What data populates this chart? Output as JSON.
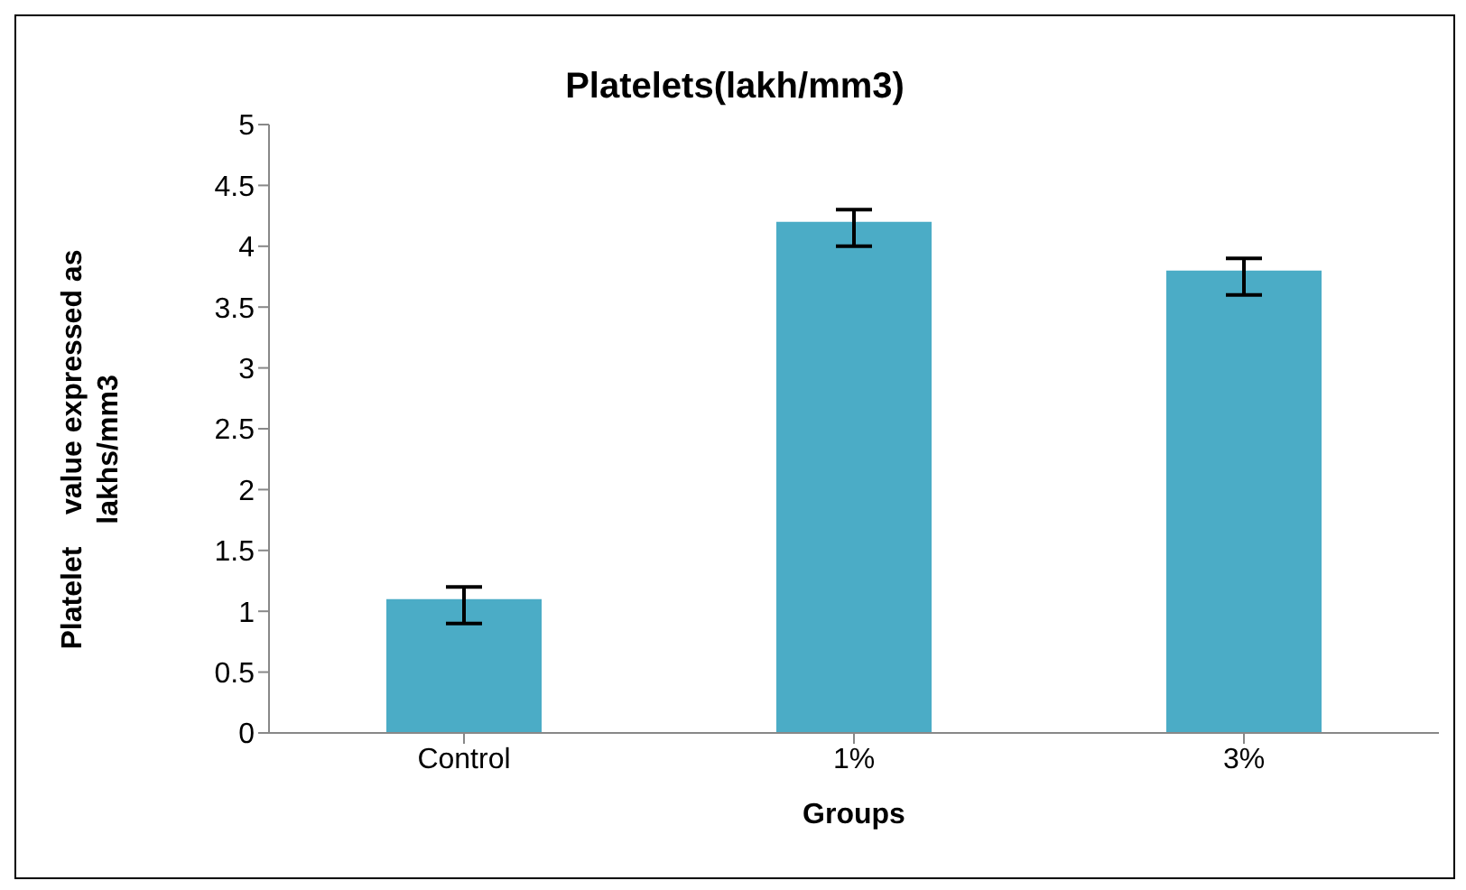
{
  "chart_data": {
    "type": "bar",
    "title": "Platelets(lakh/mm3)",
    "xlabel": "Groups",
    "ylabel": "Platelet    value expressed as lakhs/mm3",
    "categories": [
      "Control",
      "1%",
      "3%"
    ],
    "values": [
      1.1,
      4.2,
      3.8
    ],
    "errors": [
      [
        0.9,
        1.2
      ],
      [
        4.0,
        4.3
      ],
      [
        3.6,
        3.9
      ]
    ],
    "color": "#4bacc6",
    "ylim": [
      0,
      5
    ],
    "yticks": [
      0,
      0.5,
      1,
      1.5,
      2,
      2.5,
      3,
      3.5,
      4,
      4.5,
      5
    ],
    "grid": false,
    "legend": false
  }
}
